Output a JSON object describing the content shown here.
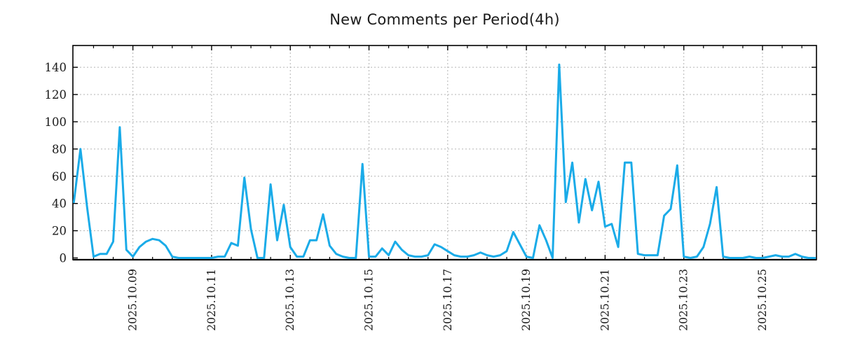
{
  "title": "New Comments per Period(4h)",
  "chart_data": {
    "type": "line",
    "title": "New Comments per Period(4h)",
    "period_hours": 4,
    "start": "2025-10-07 12:00",
    "x_tick_labels": [
      "2025.10.09",
      "2025.10.11",
      "2025.10.13",
      "2025.10.15",
      "2025.10.17",
      "2025.10.19",
      "2025.10.21",
      "2025.10.23",
      "2025.10.25"
    ],
    "x_tick_indices": [
      9,
      21,
      33,
      45,
      57,
      69,
      81,
      93,
      105
    ],
    "minor_tick_step_periods": 3,
    "y_ticks": [
      0,
      20,
      40,
      60,
      80,
      100,
      120,
      140
    ],
    "ylim": [
      0,
      156
    ],
    "grid": true,
    "legend": "none",
    "values": [
      41,
      80,
      38,
      1,
      3,
      3,
      12,
      96,
      6,
      1,
      8,
      12,
      14,
      13,
      9,
      1,
      0,
      0,
      0,
      0,
      0,
      0,
      1,
      1,
      11,
      9,
      59,
      21,
      0,
      0,
      54,
      13,
      39,
      8,
      1,
      1,
      13,
      13,
      32,
      9,
      3,
      1,
      0,
      0,
      69,
      1,
      1,
      7,
      2,
      12,
      6,
      2,
      1,
      1,
      2,
      10,
      8,
      5,
      2,
      1,
      1,
      2,
      4,
      2,
      1,
      2,
      5,
      19,
      10,
      1,
      0,
      24,
      13,
      0,
      142,
      41,
      70,
      26,
      58,
      35,
      56,
      23,
      25,
      8,
      70,
      70,
      3,
      2,
      2,
      2,
      31,
      36,
      68,
      1,
      0,
      1,
      8,
      25,
      52,
      1,
      0,
      0,
      0,
      1,
      0,
      0,
      1,
      2,
      1,
      1,
      3,
      1,
      0,
      0
    ],
    "line_color": "#1aabe8",
    "grid_color": "#b3b3b3",
    "axis_color": "#000000",
    "text_color": "#1a1a1a"
  }
}
